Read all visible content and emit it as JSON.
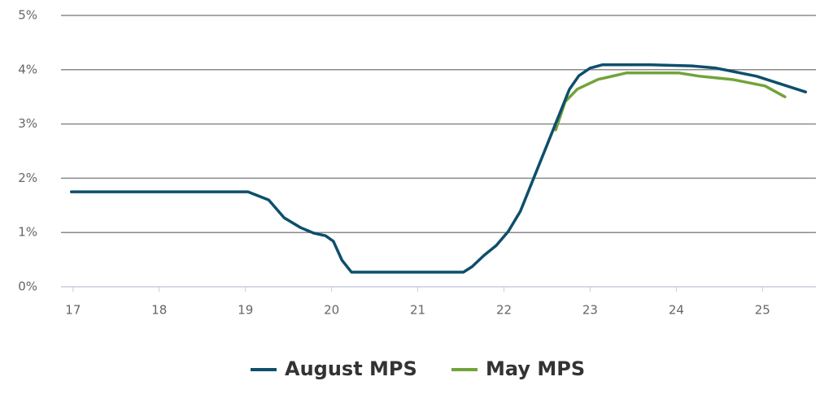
{
  "chart_data": {
    "type": "line",
    "xlim": [
      16.86,
      25.62
    ],
    "xticks": [
      17,
      18,
      19,
      20,
      21,
      22,
      23,
      24,
      25
    ],
    "ylim": [
      0,
      5
    ],
    "yticks": [
      {
        "value": 0,
        "label": "0%"
      },
      {
        "value": 1,
        "label": "1%"
      },
      {
        "value": 2,
        "label": "2%"
      },
      {
        "value": 3,
        "label": "3%"
      },
      {
        "value": 4,
        "label": "4%"
      },
      {
        "value": 5,
        "label": "5%"
      }
    ],
    "grid": true,
    "legend": "bottom",
    "series": [
      {
        "name": "August MPS",
        "color": "#0d4f6c",
        "x": [
          16.98,
          19.03,
          19.27,
          19.45,
          19.64,
          19.79,
          19.93,
          20.02,
          20.12,
          20.23,
          21.53,
          21.63,
          21.77,
          21.91,
          22.05,
          22.19,
          22.38,
          22.57,
          22.76,
          22.87,
          23.0,
          23.14,
          23.7,
          24.18,
          24.46,
          24.93,
          25.5
        ],
        "values": [
          1.75,
          1.75,
          1.6,
          1.27,
          1.09,
          0.99,
          0.94,
          0.84,
          0.49,
          0.27,
          0.27,
          0.37,
          0.58,
          0.76,
          1.02,
          1.39,
          2.14,
          2.89,
          3.64,
          3.89,
          4.03,
          4.09,
          4.09,
          4.07,
          4.03,
          3.88,
          3.59
        ]
      },
      {
        "name": "May MPS",
        "color": "#72a33a",
        "x": [
          22.6,
          22.71,
          22.85,
          23.09,
          23.42,
          24.03,
          24.27,
          24.65,
          25.03,
          25.26
        ],
        "values": [
          2.89,
          3.41,
          3.64,
          3.82,
          3.94,
          3.94,
          3.88,
          3.82,
          3.7,
          3.5
        ]
      }
    ]
  }
}
